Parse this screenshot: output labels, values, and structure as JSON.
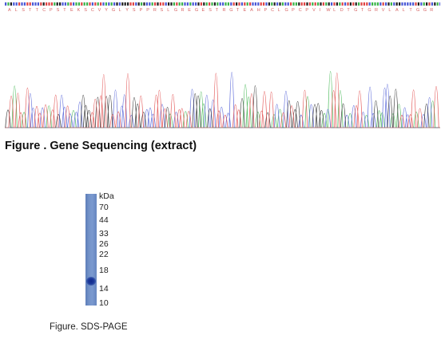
{
  "sequencing": {
    "caption": "Figure . Gene Sequencing (extract)",
    "trace_colors": {
      "A": "#3cb44b",
      "C": "#4b5ad6",
      "G": "#222222",
      "T": "#e04646"
    },
    "aa_color": "#d66060",
    "aa_residues": [
      "A",
      "L",
      "S",
      "T",
      "T",
      "C",
      "P",
      "S",
      "T",
      "E",
      "K",
      "S",
      "C",
      "V",
      "Y",
      "G",
      "L",
      "Y",
      "S",
      "P",
      "P",
      "R",
      "S",
      "L",
      "G",
      "R",
      "E",
      "G",
      "E",
      "S",
      "T",
      "R",
      "G",
      "T",
      "E",
      "A",
      "H",
      "P",
      "C",
      "L",
      "G",
      "P",
      "C",
      "P",
      "V",
      "I",
      "W",
      "L",
      "D",
      "T",
      "G",
      "T",
      "G",
      "R",
      "V",
      "L",
      "A",
      "L",
      "T",
      "G",
      "G",
      "R"
    ]
  },
  "gel": {
    "caption": "Figure. SDS-PAGE",
    "unit": "kDa",
    "markers": [
      "70",
      "44",
      "33",
      "26",
      "22",
      "18",
      "14",
      "10"
    ]
  }
}
